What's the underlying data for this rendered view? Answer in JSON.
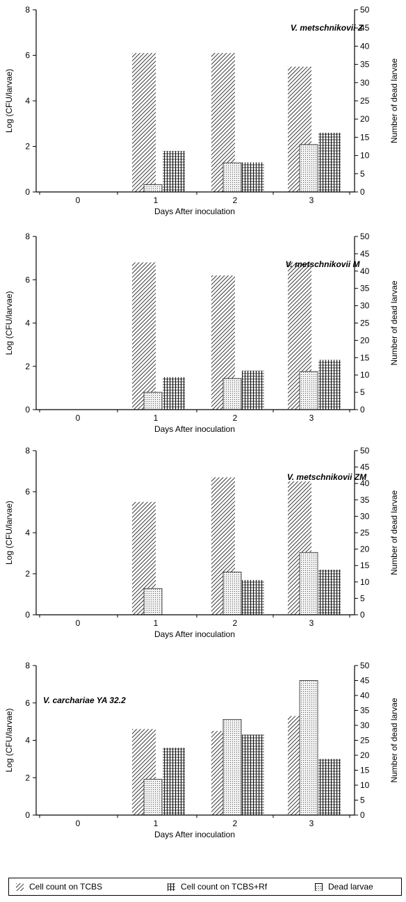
{
  "colors": {
    "tcbs": "#222222",
    "tcbs_rf": "#111111",
    "dead": "#999999"
  },
  "chart_data": [
    {
      "type": "bar",
      "title": "V. metschnikovii Z",
      "categories": [
        "0",
        "1",
        "2",
        "3"
      ],
      "xlabel": "Days After inoculation",
      "ylabel": "Log (CFU/larvae)",
      "y2label": "Number of dead larvae",
      "ylim": [
        0,
        8
      ],
      "yticks": [
        0,
        2,
        4,
        6,
        8
      ],
      "y2lim": [
        0,
        50
      ],
      "y2ticks": [
        0,
        5,
        10,
        15,
        20,
        25,
        30,
        35,
        40,
        45,
        50
      ],
      "series": [
        {
          "name": "Cell count on TCBS",
          "axis": "left",
          "values": [
            0,
            6.1,
            6.1,
            5.5
          ]
        },
        {
          "name": "Cell count on TCBS+Rf",
          "axis": "left",
          "values": [
            0,
            1.8,
            1.3,
            2.6
          ]
        },
        {
          "name": "Dead larvae",
          "axis": "right",
          "values": [
            0,
            2,
            8,
            13
          ]
        }
      ]
    },
    {
      "type": "bar",
      "title": "V. metschnikovii M",
      "categories": [
        "0",
        "1",
        "2",
        "3"
      ],
      "xlabel": "Days After inoculation",
      "ylabel": "Log (CFU/larvae)",
      "y2label": "Number of dead larvae",
      "ylim": [
        0,
        8
      ],
      "yticks": [
        0,
        2,
        4,
        6,
        8
      ],
      "y2lim": [
        0,
        50
      ],
      "y2ticks": [
        0,
        5,
        10,
        15,
        20,
        25,
        30,
        35,
        40,
        45,
        50
      ],
      "series": [
        {
          "name": "Cell count on TCBS",
          "axis": "left",
          "values": [
            0,
            6.8,
            6.2,
            6.8
          ]
        },
        {
          "name": "Cell count on TCBS+Rf",
          "axis": "left",
          "values": [
            0,
            1.5,
            1.8,
            2.3
          ]
        },
        {
          "name": "Dead larvae",
          "axis": "right",
          "values": [
            0,
            5,
            9,
            11
          ]
        }
      ]
    },
    {
      "type": "bar",
      "title": "V. metschnikovii ZM",
      "categories": [
        "0",
        "1",
        "2",
        "3"
      ],
      "xlabel": "Days After inoculation",
      "ylabel": "Log (CFU/larvae)",
      "y2label": "Number of dead larvae",
      "ylim": [
        0,
        8
      ],
      "yticks": [
        0,
        2,
        4,
        6,
        8
      ],
      "y2lim": [
        0,
        50
      ],
      "y2ticks": [
        0,
        5,
        10,
        15,
        20,
        25,
        30,
        35,
        40,
        45,
        50
      ],
      "series": [
        {
          "name": "Cell count on TCBS",
          "axis": "left",
          "values": [
            0,
            5.5,
            6.7,
            6.5
          ]
        },
        {
          "name": "Cell count on TCBS+Rf",
          "axis": "left",
          "values": [
            0,
            0,
            1.7,
            2.2
          ]
        },
        {
          "name": "Dead larvae",
          "axis": "right",
          "values": [
            0,
            8,
            13,
            19
          ]
        }
      ]
    },
    {
      "type": "bar",
      "title": "V. carchariae YA 32.2",
      "categories": [
        "0",
        "1",
        "2",
        "3"
      ],
      "xlabel": "Days After inoculation",
      "ylabel": "Log (CFU/larvae)",
      "y2label": "Number of dead larvae",
      "ylim": [
        0,
        8
      ],
      "yticks": [
        0,
        2,
        4,
        6,
        8
      ],
      "y2lim": [
        0,
        50
      ],
      "y2ticks": [
        0,
        5,
        10,
        15,
        20,
        25,
        30,
        35,
        40,
        45,
        50
      ],
      "series": [
        {
          "name": "Cell count on TCBS",
          "axis": "left",
          "values": [
            0,
            4.6,
            4.5,
            5.3
          ]
        },
        {
          "name": "Cell count on TCBS+Rf",
          "axis": "left",
          "values": [
            0,
            3.6,
            4.3,
            3.0
          ]
        },
        {
          "name": "Dead larvae",
          "axis": "right",
          "values": [
            0,
            12,
            32,
            45
          ]
        }
      ]
    }
  ],
  "legend": {
    "items": [
      {
        "label": "Cell count on TCBS"
      },
      {
        "label": "Cell count on TCBS+Rf"
      },
      {
        "label": "Dead larvae"
      }
    ]
  }
}
